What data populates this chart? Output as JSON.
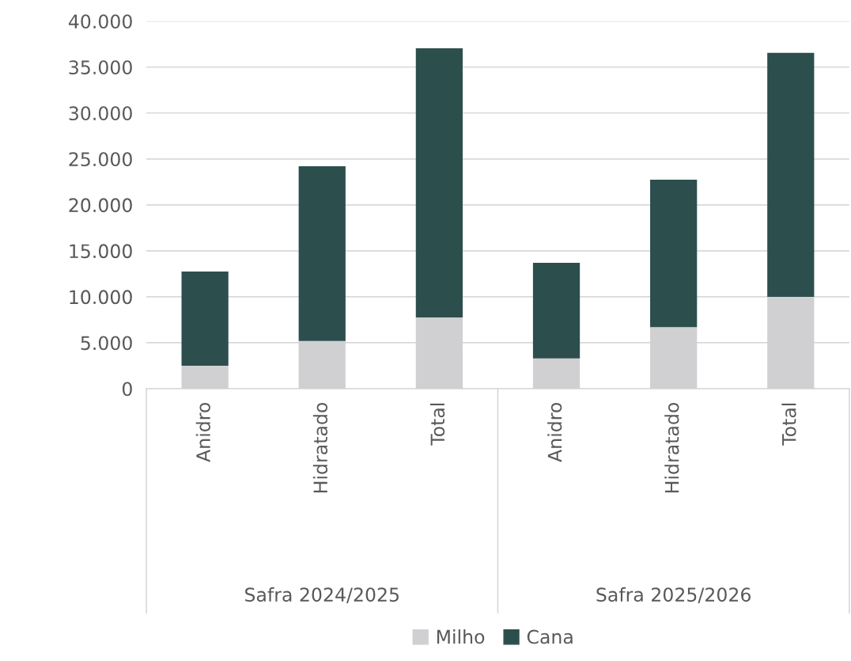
{
  "chart_data": {
    "type": "bar",
    "stacked": true,
    "categories": [
      "Anidro",
      "Hidratado",
      "Total",
      "Anidro",
      "Hidratado",
      "Total"
    ],
    "series": [
      {
        "name": "Milho",
        "color": "#d0d0d2",
        "values": [
          2500,
          5200,
          7750,
          3300,
          6700,
          10000
        ]
      },
      {
        "name": "Cana",
        "color": "#2c4f4d",
        "values": [
          10250,
          19000,
          29300,
          10400,
          16050,
          26550
        ]
      }
    ],
    "ylim": [
      0,
      40000
    ],
    "yticks": [
      0,
      {
        "value": 5000,
        "label": "5.000"
      },
      {
        "value": 10000,
        "label": "10.000"
      },
      {
        "value": 15000,
        "label": "15.000"
      },
      {
        "value": 20000,
        "label": "20.000"
      },
      {
        "value": 25000,
        "label": "25.000"
      },
      {
        "value": 30000,
        "label": "30.000"
      },
      {
        "value": 35000,
        "label": "35.000"
      },
      {
        "value": 40000,
        "label": "40.000"
      }
    ],
    "grid": "y",
    "legend": "bottom",
    "annotations": [
      "Safra 2024/2025",
      "Safra 2025/2026"
    ]
  }
}
